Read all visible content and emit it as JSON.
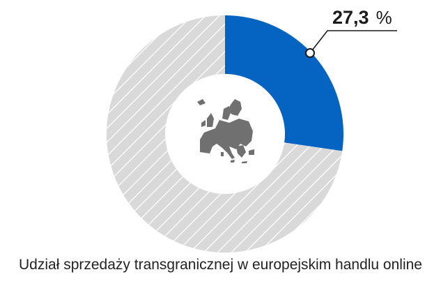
{
  "chart_data": {
    "type": "pie",
    "title": "Udział sprzedaży transgranicznej w europejskim handlu online",
    "slices": [
      {
        "label": "",
        "value": 27.3
      },
      {
        "label": "",
        "value": 72.7
      }
    ],
    "value_label": {
      "number": "27,3",
      "unit": "%"
    },
    "center_icon": "europe-map-icon",
    "legend": "none",
    "colors": {
      "highlight": "#0563c1",
      "rest": "#d9d9d9",
      "rest_hatch": "#ffffff",
      "map": "#707070",
      "leader": "#1a1a1a"
    }
  }
}
